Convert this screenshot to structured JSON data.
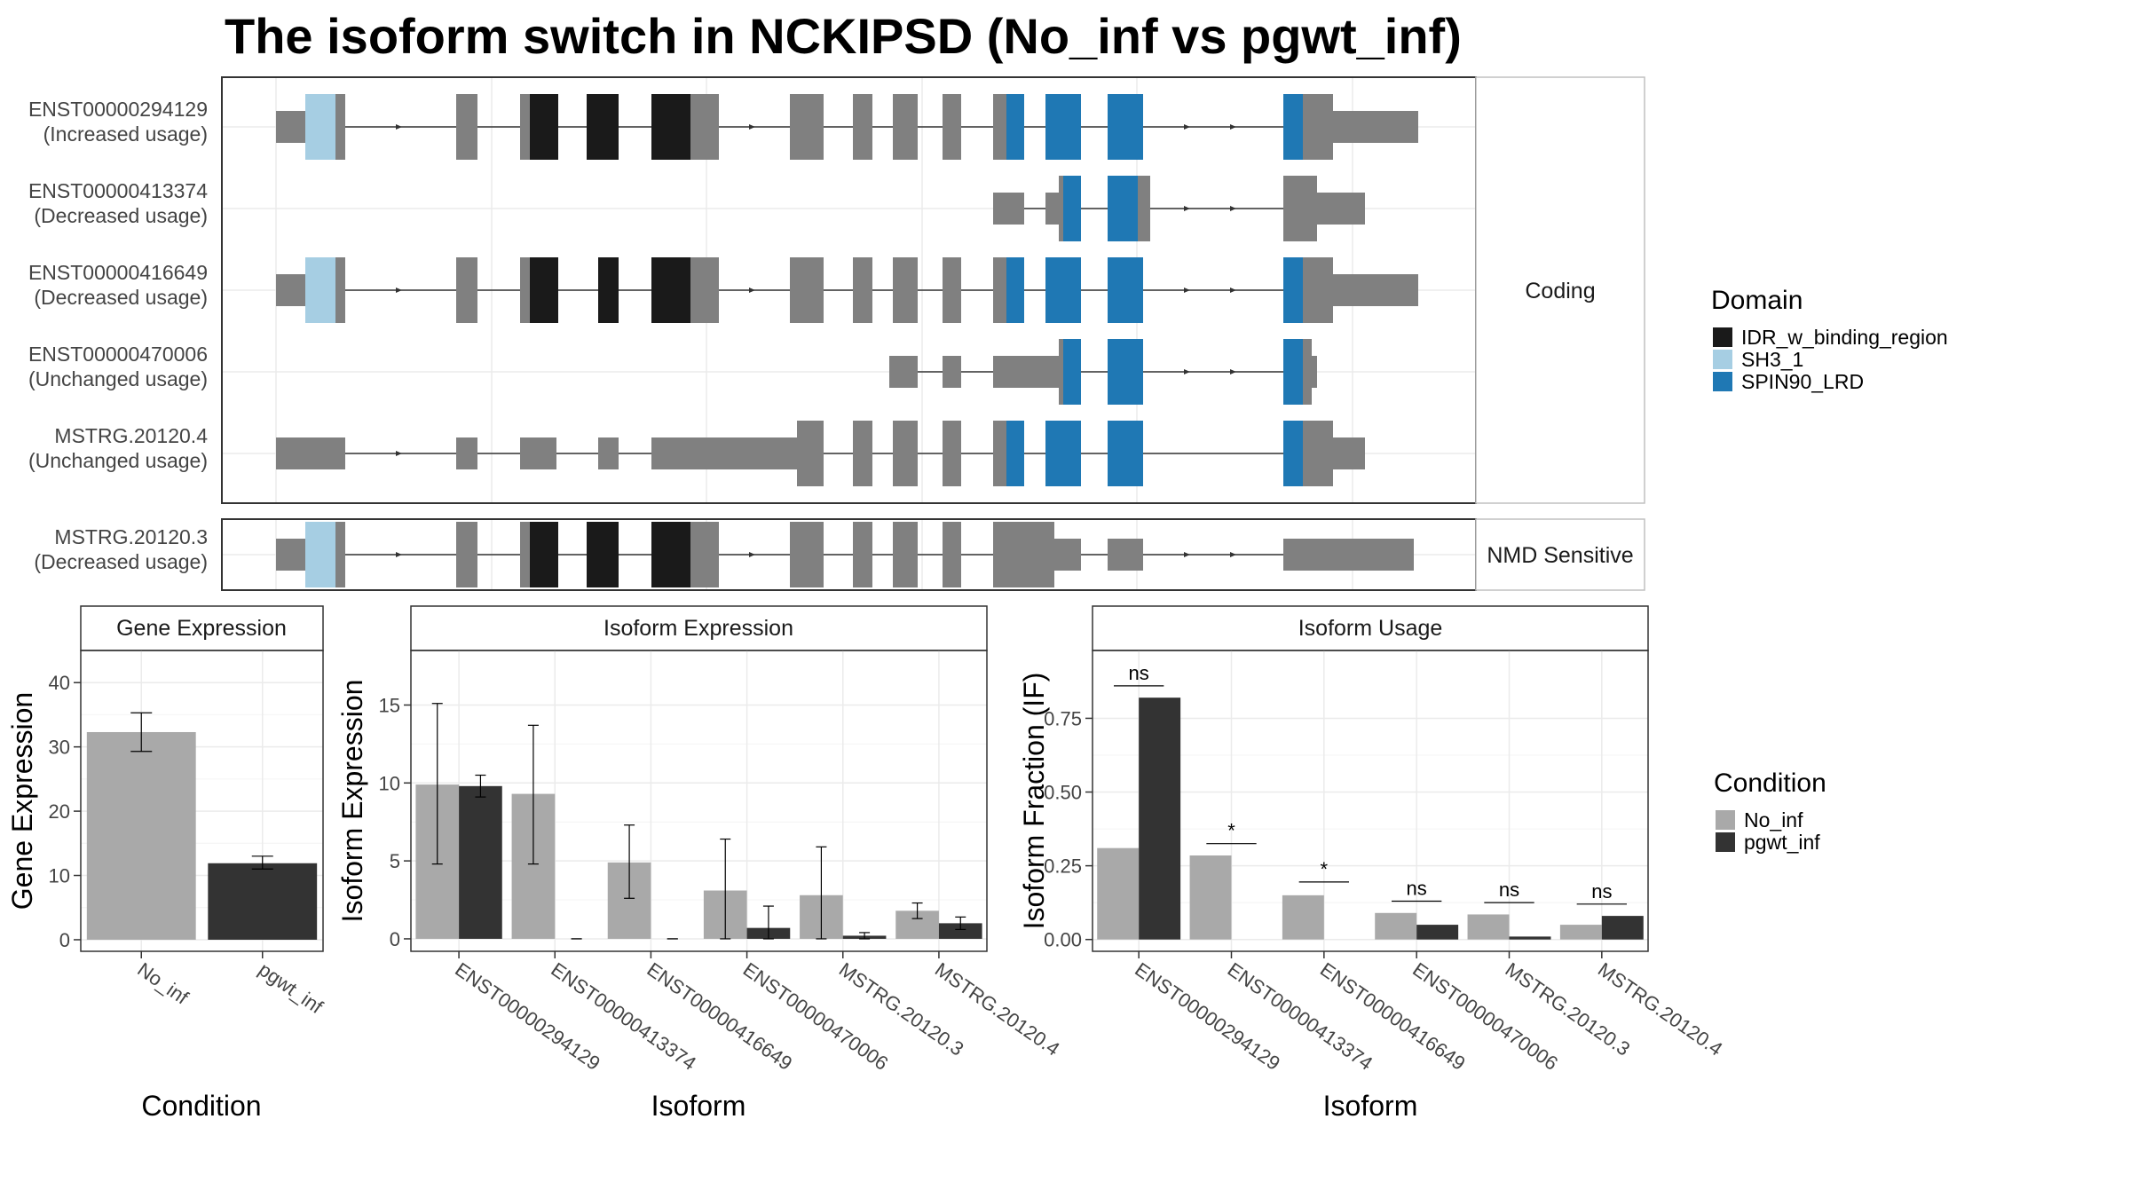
{
  "title": "The isoform switch in NCKIPSD (No_inf vs pgwt_inf)",
  "colors": {
    "IDR_w_binding_region": "#1a1a1a",
    "SH3_1": "#a6cee3",
    "SPIN90_LRD": "#1f78b4",
    "noncoding": "#808080",
    "No_inf": "#a9a9a9",
    "pgwt_inf": "#333333"
  },
  "gene_structure": {
    "coding_strip": "Coding",
    "nmd_strip": "NMD Sensitive",
    "transcripts": [
      {
        "id": "ENST00000294129",
        "status": "(Increased usage)"
      },
      {
        "id": "ENST00000413374",
        "status": "(Decreased usage)"
      },
      {
        "id": "ENST00000416649",
        "status": "(Decreased usage)"
      },
      {
        "id": "ENST00000470006",
        "status": "(Unchanged usage)"
      },
      {
        "id": "MSTRG.20120.4",
        "status": "(Unchanged usage)"
      },
      {
        "id": "MSTRG.20120.3",
        "status": "(Decreased usage)"
      }
    ]
  },
  "domain_legend": {
    "title": "Domain",
    "items": [
      {
        "name": "IDR_w_binding_region",
        "color": "#1a1a1a"
      },
      {
        "name": "SH3_1",
        "color": "#a6cee3"
      },
      {
        "name": "SPIN90_LRD",
        "color": "#1f78b4"
      }
    ]
  },
  "condition_legend": {
    "title": "Condition",
    "items": [
      {
        "name": "No_inf",
        "color": "#a9a9a9"
      },
      {
        "name": "pgwt_inf",
        "color": "#333333"
      }
    ]
  },
  "chart_data": [
    {
      "type": "bar",
      "title": "Gene Expression",
      "xlabel": "Condition",
      "ylabel": "Gene Expression",
      "categories": [
        "No_inf",
        "pgwt_inf"
      ],
      "values": [
        32.3,
        11.9
      ],
      "error_low": [
        29.3,
        11.0
      ],
      "error_high": [
        35.3,
        13.0
      ],
      "ylim": [
        -1.8,
        45
      ],
      "yticks": [
        0,
        10,
        20,
        30,
        40
      ]
    },
    {
      "type": "bar",
      "title": "Isoform Expression",
      "xlabel": "Isoform",
      "ylabel": "Isoform Expression",
      "categories": [
        "ENST00000294129",
        "ENST00000413374",
        "ENST00000416649",
        "ENST00000470006",
        "MSTRG.20120.3",
        "MSTRG.20120.4"
      ],
      "series": [
        {
          "name": "No_inf",
          "values": [
            9.9,
            9.3,
            4.9,
            3.1,
            2.8,
            1.8
          ],
          "error_low": [
            4.8,
            4.8,
            2.6,
            0.0,
            0.0,
            1.3
          ],
          "error_high": [
            15.1,
            13.7,
            7.3,
            6.4,
            5.9,
            2.3
          ]
        },
        {
          "name": "pgwt_inf",
          "values": [
            9.8,
            0.0,
            0.0,
            0.7,
            0.2,
            1.0
          ],
          "error_low": [
            9.1,
            0.0,
            0.0,
            0.0,
            0.0,
            0.6
          ],
          "error_high": [
            10.5,
            0.0,
            0.0,
            2.1,
            0.4,
            1.4
          ]
        }
      ],
      "ylim": [
        -0.8,
        18.5
      ],
      "yticks": [
        0,
        5,
        10,
        15
      ]
    },
    {
      "type": "bar",
      "title": "Isoform Usage",
      "xlabel": "Isoform",
      "ylabel": "Isoform Fraction (IF)",
      "categories": [
        "ENST00000294129",
        "ENST00000413374",
        "ENST00000416649",
        "ENST00000470006",
        "MSTRG.20120.3",
        "MSTRG.20120.4"
      ],
      "series": [
        {
          "name": "No_inf",
          "values": [
            0.31,
            0.285,
            0.15,
            0.09,
            0.085,
            0.05
          ]
        },
        {
          "name": "pgwt_inf",
          "values": [
            0.82,
            0.0,
            0.0,
            0.05,
            0.01,
            0.08
          ]
        }
      ],
      "significance": [
        "ns",
        "*",
        "*",
        "ns",
        "ns",
        "ns"
      ],
      "significance_y": [
        0.86,
        0.325,
        0.195,
        0.13,
        0.125,
        0.12
      ],
      "ylim": [
        -0.04,
        0.98
      ],
      "yticks": [
        0.0,
        0.25,
        0.5,
        0.75
      ],
      "ytick_labels": [
        "0.00",
        "0.25",
        "0.50",
        "0.75"
      ]
    }
  ]
}
